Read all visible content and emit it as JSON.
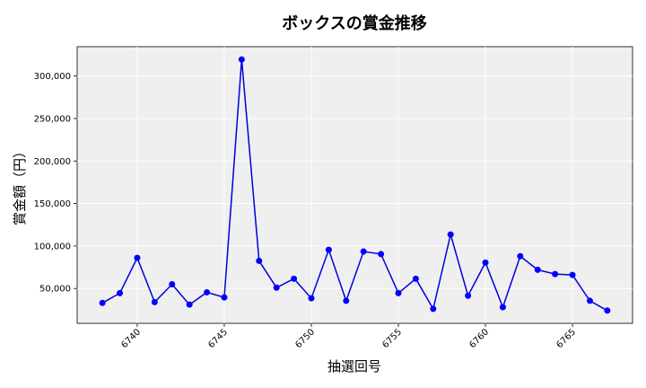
{
  "chart_data": {
    "type": "line",
    "title": "ボックスの賞金推移",
    "xlabel": "抽選回号",
    "ylabel": "賞金額（円）",
    "x": [
      6738,
      6739,
      6740,
      6741,
      6742,
      6743,
      6744,
      6745,
      6746,
      6747,
      6748,
      6749,
      6750,
      6751,
      6752,
      6753,
      6754,
      6755,
      6756,
      6757,
      6758,
      6759,
      6760,
      6761,
      6762,
      6763,
      6764,
      6765,
      6766,
      6767
    ],
    "series": [
      {
        "values": [
          33000,
          44500,
          86000,
          34000,
          55000,
          31000,
          45500,
          39500,
          319500,
          82500,
          51000,
          61500,
          38500,
          95500,
          35500,
          93500,
          90500,
          44500,
          61500,
          26000,
          113500,
          41500,
          80500,
          28000,
          88000,
          72000,
          67000,
          66000,
          35500,
          24000
        ]
      }
    ],
    "xticks": [
      6740,
      6745,
      6750,
      6755,
      6760,
      6765
    ],
    "yticks": [
      50000,
      100000,
      150000,
      200000,
      250000,
      300000
    ],
    "xlim": [
      6736.55,
      6768.45
    ],
    "ylim": [
      9000,
      334500
    ],
    "grid": true,
    "colors": {
      "line": "#0000dd",
      "marker": "#0000ff",
      "background": "#efefef",
      "grid": "#ffffff"
    }
  }
}
